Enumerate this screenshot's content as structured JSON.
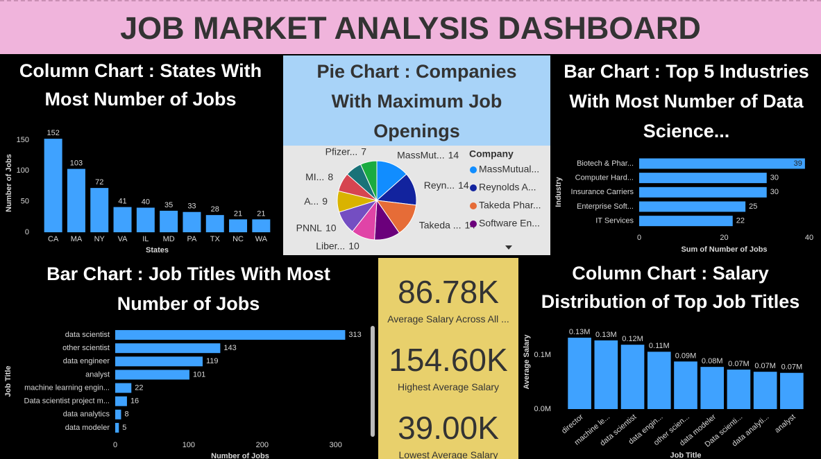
{
  "header": {
    "title": "JOB MARKET ANALYSIS DASHBOARD"
  },
  "chart_data": [
    {
      "type": "column",
      "title": "Column Chart : States With Most Number of Jobs",
      "categories": [
        "CA",
        "MA",
        "NY",
        "VA",
        "IL",
        "MD",
        "PA",
        "TX",
        "NC",
        "WA"
      ],
      "values": [
        152,
        103,
        72,
        41,
        40,
        35,
        33,
        28,
        21,
        21
      ],
      "color": "#3fa2ff",
      "ylim": [
        0,
        160
      ],
      "yticks": [
        0,
        50,
        100,
        150
      ],
      "x_label": "States",
      "y_label": "Number of Jobs"
    },
    {
      "type": "pie",
      "title": "Pie Chart : Companies With Maximum Job Openings",
      "categories": [
        "MassMut...",
        "Reyn...",
        "Takeda ...",
        null,
        "Liber...",
        "PNNL",
        "A...",
        "MI...",
        null,
        "Pfizer..."
      ],
      "values": [
        14,
        14,
        14,
        11,
        10,
        10,
        9,
        8,
        7,
        7
      ],
      "colors": [
        "#118dff",
        "#12239e",
        "#e66c37",
        "#6b007b",
        "#e044a7",
        "#744ec2",
        "#d9b300",
        "#d64550",
        "#197278",
        "#1aab40"
      ],
      "legend_title": "Company",
      "legend": [
        "MassMutual...",
        "Reynolds A...",
        "Takeda Phar...",
        "Software En..."
      ]
    },
    {
      "type": "bar",
      "title": "Bar Chart : Top 5 Industries With Most Number of Data Science...",
      "categories": [
        "Biotech & Phar...",
        "Computer Hard...",
        "Insurance Carriers",
        "Enterprise Soft...",
        "IT Services"
      ],
      "values": [
        39,
        30,
        30,
        25,
        22
      ],
      "color": "#3fa2ff",
      "xlim": [
        0,
        40
      ],
      "xticks": [
        0,
        20,
        40
      ],
      "x_label": "Sum of Number of Jobs",
      "y_label": "Industry"
    },
    {
      "type": "bar",
      "title": "Bar Chart : Job Titles With Most Number of Jobs",
      "categories": [
        "data scientist",
        "other scientist",
        "data engineer",
        "analyst",
        "machine learning engin...",
        "Data scientist project m...",
        "data analytics",
        "data modeler"
      ],
      "values": [
        313,
        143,
        119,
        101,
        22,
        16,
        8,
        5
      ],
      "color": "#3fa2ff",
      "xlim": [
        0,
        340
      ],
      "xticks": [
        0,
        100,
        200,
        300
      ],
      "x_label": "Number of Jobs",
      "y_label": "Job Title"
    },
    {
      "type": "column",
      "title": "Column Chart : Salary Distribution of Top Job Titles",
      "categories": [
        "director",
        "machine le...",
        "data scientist",
        "data engin...",
        "other scien...",
        "data modeler",
        "Data scienti...",
        "data analyti...",
        "analyst"
      ],
      "values": [
        132000,
        127000,
        119000,
        106000,
        88000,
        78000,
        73000,
        69000,
        67000
      ],
      "value_labels": [
        "0.13M",
        "0.13M",
        "0.12M",
        "0.11M",
        "0.09M",
        "0.08M",
        "0.07M",
        "0.07M",
        "0.07M"
      ],
      "color": "#3fa2ff",
      "ylim": [
        0,
        150000
      ],
      "yticks": [
        {
          "value": 0,
          "label": "0.0M"
        },
        {
          "value": 100000,
          "label": "0.1M"
        }
      ],
      "x_label": "Job Title",
      "y_label": "Average Salary"
    }
  ],
  "cards": [
    {
      "value": "86.78K",
      "label": "Average Salary Across All ..."
    },
    {
      "value": "154.60K",
      "label": "Highest Average Salary"
    },
    {
      "value": "39.00K",
      "label": "Lowest Average Salary"
    }
  ]
}
